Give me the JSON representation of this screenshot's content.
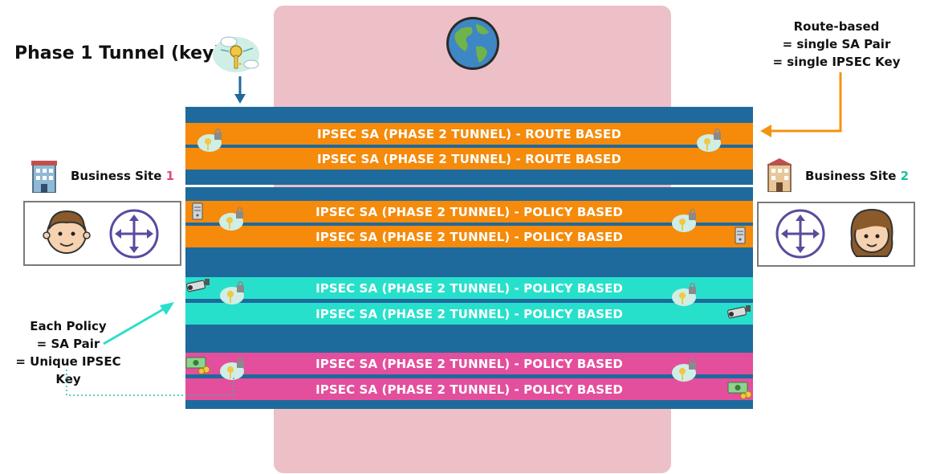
{
  "title": "Phase 1 Tunnel (key)",
  "route_note": [
    "Route-based",
    "= single SA Pair",
    "= single IPSEC Key"
  ],
  "policy_note": [
    "Each Policy",
    "= SA Pair",
    "= Unique IPSEC Key"
  ],
  "site1": {
    "label": "Business Site ",
    "number": "1"
  },
  "site2": {
    "label": "Business Site ",
    "number": "2"
  },
  "tunnels": [
    {
      "label": "IPSEC SA (PHASE 2 TUNNEL) - ROUTE BASED",
      "color": "#f58a0b"
    },
    {
      "label": "IPSEC SA (PHASE 2 TUNNEL) - ROUTE BASED",
      "color": "#f58a0b"
    },
    {
      "label": "IPSEC SA (PHASE 2 TUNNEL) - POLICY BASED",
      "color": "#f58a0b"
    },
    {
      "label": "IPSEC SA (PHASE 2 TUNNEL) - POLICY BASED",
      "color": "#f58a0b"
    },
    {
      "label": "IPSEC SA (PHASE 2 TUNNEL) - POLICY BASED",
      "color": "#27e0cc"
    },
    {
      "label": "IPSEC SA (PHASE 2 TUNNEL) - POLICY BASED",
      "color": "#27e0cc"
    },
    {
      "label": "IPSEC SA (PHASE 2 TUNNEL) - POLICY BASED",
      "color": "#e34f9c"
    },
    {
      "label": "IPSEC SA (PHASE 2 TUNNEL) - POLICY BASED",
      "color": "#e34f9c"
    }
  ],
  "colors": {
    "tunnel_blue": "#1f6a9c",
    "internet_pink": "#edc0c8",
    "route_orange": "#f58a0b",
    "policy_teal": "#27e0cc",
    "policy_pink": "#e34f9c",
    "router_purple": "#5b4a9e"
  },
  "icons": [
    "globe-icon",
    "cloud-key-icon",
    "building-icon",
    "router-icon",
    "person-icon",
    "server-icon",
    "camera-icon",
    "money-icon",
    "lock-icon"
  ]
}
